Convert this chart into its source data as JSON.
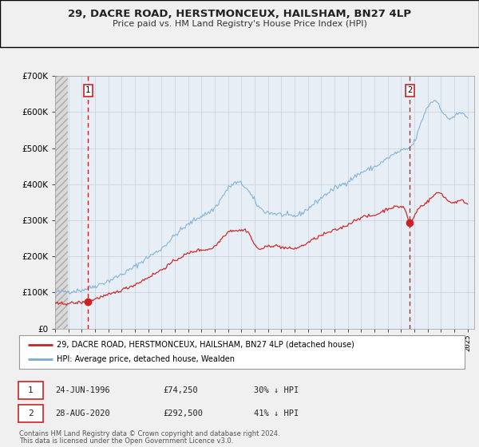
{
  "title": "29, DACRE ROAD, HERSTMONCEUX, HAILSHAM, BN27 4LP",
  "subtitle": "Price paid vs. HM Land Registry's House Price Index (HPI)",
  "legend_label_red": "29, DACRE ROAD, HERSTMONCEUX, HAILSHAM, BN27 4LP (detached house)",
  "legend_label_blue": "HPI: Average price, detached house, Wealden",
  "marker1_date": "24-JUN-1996",
  "marker1_price": "£74,250",
  "marker1_hpi": "30% ↓ HPI",
  "marker2_date": "28-AUG-2020",
  "marker2_price": "£292,500",
  "marker2_hpi": "41% ↓ HPI",
  "footer1": "Contains HM Land Registry data © Crown copyright and database right 2024.",
  "footer2": "This data is licensed under the Open Government Licence v3.0.",
  "xlim": [
    1994.0,
    2025.5
  ],
  "ylim": [
    0,
    700000
  ],
  "yticks": [
    0,
    100000,
    200000,
    300000,
    400000,
    500000,
    600000,
    700000
  ],
  "ytick_labels": [
    "£0",
    "£100K",
    "£200K",
    "£300K",
    "£400K",
    "£500K",
    "£600K",
    "£700K"
  ],
  "xticks": [
    1994,
    1995,
    1996,
    1997,
    1998,
    1999,
    2000,
    2001,
    2002,
    2003,
    2004,
    2005,
    2006,
    2007,
    2008,
    2009,
    2010,
    2011,
    2012,
    2013,
    2014,
    2015,
    2016,
    2017,
    2018,
    2019,
    2020,
    2021,
    2022,
    2023,
    2024,
    2025
  ],
  "vline1_x": 1996.48,
  "vline2_x": 2020.66,
  "marker1_x": 1996.48,
  "marker1_y": 74250,
  "marker2_x": 2020.66,
  "marker2_y": 292500,
  "background_color": "#f0f0f0",
  "plot_bg_color": "#e8eef5",
  "grid_color": "#c8d0d8",
  "red_color": "#cc2222",
  "blue_color": "#7aaed6",
  "hatch_color": "#c0c0c0",
  "label_num": "1",
  "label_num2": "2"
}
